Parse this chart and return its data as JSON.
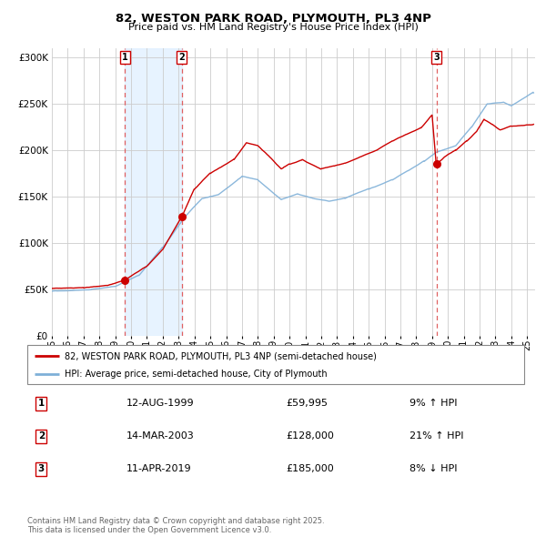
{
  "title": "82, WESTON PARK ROAD, PLYMOUTH, PL3 4NP",
  "subtitle": "Price paid vs. HM Land Registry's House Price Index (HPI)",
  "legend_line1": "82, WESTON PARK ROAD, PLYMOUTH, PL3 4NP (semi-detached house)",
  "legend_line2": "HPI: Average price, semi-detached house, City of Plymouth",
  "footer": "Contains HM Land Registry data © Crown copyright and database right 2025.\nThis data is licensed under the Open Government Licence v3.0.",
  "price_color": "#cc0000",
  "hpi_color": "#7fb0d8",
  "sale_marker_color": "#cc0000",
  "vline_color": "#e06060",
  "shade_color": "#ddeeff",
  "ylim": [
    0,
    310000
  ],
  "yticks": [
    0,
    50000,
    100000,
    150000,
    200000,
    250000,
    300000
  ],
  "transactions": [
    {
      "num": 1,
      "date_label": "12-AUG-1999",
      "year": 1999.62,
      "price": 59995,
      "pct": "9%",
      "dir": "↑"
    },
    {
      "num": 2,
      "date_label": "14-MAR-2003",
      "year": 2003.2,
      "price": 128000,
      "pct": "21%",
      "dir": "↑"
    },
    {
      "num": 3,
      "date_label": "11-APR-2019",
      "year": 2019.28,
      "price": 185000,
      "pct": "8%",
      "dir": "↓"
    }
  ],
  "xlim": [
    1995.0,
    2025.5
  ],
  "xticks": [
    1995,
    1996,
    1997,
    1998,
    1999,
    2000,
    2001,
    2002,
    2003,
    2004,
    2005,
    2006,
    2007,
    2008,
    2009,
    2010,
    2011,
    2012,
    2013,
    2014,
    2015,
    2016,
    2017,
    2018,
    2019,
    2020,
    2021,
    2022,
    2023,
    2024,
    2025
  ]
}
